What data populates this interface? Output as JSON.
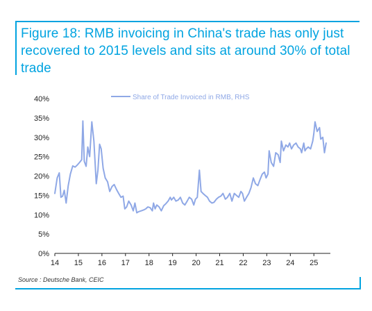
{
  "figure": {
    "title": "Figure 18: RMB invoicing in China's trade has only just recovered to 2015 levels and sits at around 30% of total trade",
    "source": "Source : Deutsche Bank, CEIC",
    "accent_color": "#00a3e0"
  },
  "chart_data": {
    "type": "line",
    "title": "",
    "xlabel": "",
    "ylabel": "",
    "x_ticks": [
      "14",
      "15",
      "16",
      "17",
      "18",
      "19",
      "20",
      "21",
      "22",
      "23",
      "24",
      "25"
    ],
    "y_ticks": [
      "0%",
      "5%",
      "10%",
      "15%",
      "20%",
      "25%",
      "30%",
      "35%",
      "40%"
    ],
    "xlim": [
      2014.0,
      2025.7
    ],
    "ylim": [
      0,
      40
    ],
    "grid": false,
    "legend_position": "top-center",
    "series": [
      {
        "name": "Share of Trade Invoiced in RMB, RHS",
        "color": "#8fa8e6",
        "points": [
          [
            2014.0,
            15.5
          ],
          [
            2014.1,
            19.5
          ],
          [
            2014.19,
            20.8
          ],
          [
            2014.26,
            14.5
          ],
          [
            2014.33,
            14.8
          ],
          [
            2014.4,
            16.3
          ],
          [
            2014.48,
            13.0
          ],
          [
            2014.57,
            17.5
          ],
          [
            2014.66,
            20.5
          ],
          [
            2014.76,
            22.6
          ],
          [
            2014.86,
            22.3
          ],
          [
            2014.95,
            22.8
          ],
          [
            2015.05,
            23.5
          ],
          [
            2015.14,
            24.2
          ],
          [
            2015.19,
            34.2
          ],
          [
            2015.25,
            23.8
          ],
          [
            2015.33,
            22.5
          ],
          [
            2015.4,
            27.5
          ],
          [
            2015.48,
            25.0
          ],
          [
            2015.57,
            34.0
          ],
          [
            2015.66,
            29.0
          ],
          [
            2015.76,
            18.0
          ],
          [
            2015.83,
            21.5
          ],
          [
            2015.9,
            28.2
          ],
          [
            2015.97,
            27.0
          ],
          [
            2016.05,
            22.0
          ],
          [
            2016.14,
            19.5
          ],
          [
            2016.24,
            18.5
          ],
          [
            2016.33,
            16.0
          ],
          [
            2016.43,
            17.3
          ],
          [
            2016.52,
            17.8
          ],
          [
            2016.62,
            16.5
          ],
          [
            2016.71,
            15.5
          ],
          [
            2016.81,
            14.5
          ],
          [
            2016.9,
            14.8
          ],
          [
            2016.97,
            11.5
          ],
          [
            2017.05,
            12.0
          ],
          [
            2017.14,
            13.5
          ],
          [
            2017.24,
            12.5
          ],
          [
            2017.33,
            11.0
          ],
          [
            2017.4,
            13.0
          ],
          [
            2017.48,
            10.5
          ],
          [
            2017.57,
            10.8
          ],
          [
            2017.67,
            11.0
          ],
          [
            2017.76,
            11.2
          ],
          [
            2017.86,
            11.5
          ],
          [
            2017.95,
            12.0
          ],
          [
            2018.05,
            11.8
          ],
          [
            2018.14,
            11.0
          ],
          [
            2018.19,
            13.0
          ],
          [
            2018.26,
            11.5
          ],
          [
            2018.33,
            12.5
          ],
          [
            2018.43,
            12.0
          ],
          [
            2018.52,
            11.0
          ],
          [
            2018.62,
            12.3
          ],
          [
            2018.71,
            12.8
          ],
          [
            2018.81,
            13.5
          ],
          [
            2018.9,
            14.5
          ],
          [
            2018.95,
            13.8
          ],
          [
            2019.05,
            14.5
          ],
          [
            2019.14,
            13.5
          ],
          [
            2019.24,
            13.8
          ],
          [
            2019.33,
            14.5
          ],
          [
            2019.43,
            13.0
          ],
          [
            2019.52,
            12.5
          ],
          [
            2019.62,
            13.5
          ],
          [
            2019.71,
            14.5
          ],
          [
            2019.81,
            14.0
          ],
          [
            2019.9,
            12.5
          ],
          [
            2019.97,
            14.0
          ],
          [
            2020.05,
            14.5
          ],
          [
            2020.14,
            21.5
          ],
          [
            2020.21,
            16.0
          ],
          [
            2020.29,
            15.5
          ],
          [
            2020.38,
            15.0
          ],
          [
            2020.48,
            14.5
          ],
          [
            2020.57,
            13.5
          ],
          [
            2020.67,
            13.0
          ],
          [
            2020.76,
            13.2
          ],
          [
            2020.86,
            14.0
          ],
          [
            2020.95,
            14.5
          ],
          [
            2021.05,
            14.8
          ],
          [
            2021.14,
            15.5
          ],
          [
            2021.24,
            14.0
          ],
          [
            2021.33,
            14.5
          ],
          [
            2021.43,
            15.5
          ],
          [
            2021.52,
            13.5
          ],
          [
            2021.62,
            15.5
          ],
          [
            2021.71,
            15.0
          ],
          [
            2021.81,
            14.5
          ],
          [
            2021.9,
            16.0
          ],
          [
            2021.97,
            15.5
          ],
          [
            2022.05,
            13.5
          ],
          [
            2022.14,
            14.5
          ],
          [
            2022.24,
            15.5
          ],
          [
            2022.33,
            17.0
          ],
          [
            2022.43,
            19.5
          ],
          [
            2022.52,
            18.0
          ],
          [
            2022.62,
            17.5
          ],
          [
            2022.71,
            19.0
          ],
          [
            2022.81,
            20.5
          ],
          [
            2022.9,
            21.0
          ],
          [
            2022.97,
            19.5
          ],
          [
            2023.05,
            20.5
          ],
          [
            2023.1,
            26.5
          ],
          [
            2023.19,
            23.5
          ],
          [
            2023.29,
            22.5
          ],
          [
            2023.38,
            26.0
          ],
          [
            2023.48,
            25.5
          ],
          [
            2023.57,
            23.5
          ],
          [
            2023.62,
            29.0
          ],
          [
            2023.71,
            26.5
          ],
          [
            2023.81,
            28.0
          ],
          [
            2023.9,
            27.5
          ],
          [
            2023.97,
            28.5
          ],
          [
            2024.05,
            27.0
          ],
          [
            2024.14,
            28.0
          ],
          [
            2024.24,
            28.5
          ],
          [
            2024.33,
            27.5
          ],
          [
            2024.43,
            27.0
          ],
          [
            2024.48,
            26.0
          ],
          [
            2024.57,
            28.5
          ],
          [
            2024.62,
            26.5
          ],
          [
            2024.67,
            27.0
          ],
          [
            2024.76,
            27.5
          ],
          [
            2024.86,
            27.0
          ],
          [
            2024.95,
            29.0
          ],
          [
            2025.0,
            31.0
          ],
          [
            2025.05,
            34.0
          ],
          [
            2025.14,
            31.5
          ],
          [
            2025.24,
            32.5
          ],
          [
            2025.29,
            29.5
          ],
          [
            2025.38,
            30.0
          ],
          [
            2025.45,
            26.0
          ],
          [
            2025.52,
            28.5
          ]
        ]
      }
    ]
  }
}
